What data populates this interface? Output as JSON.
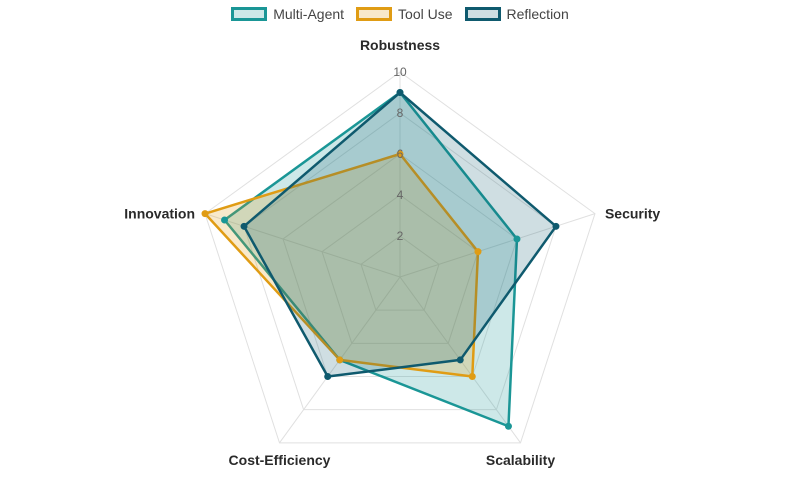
{
  "chart_data": {
    "type": "radar",
    "axes": [
      "Robustness",
      "Security",
      "Scalability",
      "Cost-Efficiency",
      "Innovation"
    ],
    "r_range": [
      0,
      10
    ],
    "ticks": [
      "2",
      "4",
      "6",
      "8",
      "10"
    ],
    "tick_values": [
      2,
      4,
      6,
      8,
      10
    ],
    "grid": true,
    "legend_position": "top-center",
    "series": [
      {
        "name": "Multi-Agent",
        "values": [
          9,
          6,
          9,
          5,
          9
        ],
        "color": "#1a9696",
        "fill": "rgba(26,150,150,0.22)"
      },
      {
        "name": "Tool Use",
        "values": [
          6,
          4,
          6,
          5,
          10
        ],
        "color": "#e09c14",
        "fill": "rgba(224,156,20,0.22)"
      },
      {
        "name": "Reflection",
        "values": [
          9,
          8,
          5,
          6,
          8
        ],
        "color": "#0f5a6e",
        "fill": "rgba(15,90,110,0.20)"
      }
    ]
  }
}
